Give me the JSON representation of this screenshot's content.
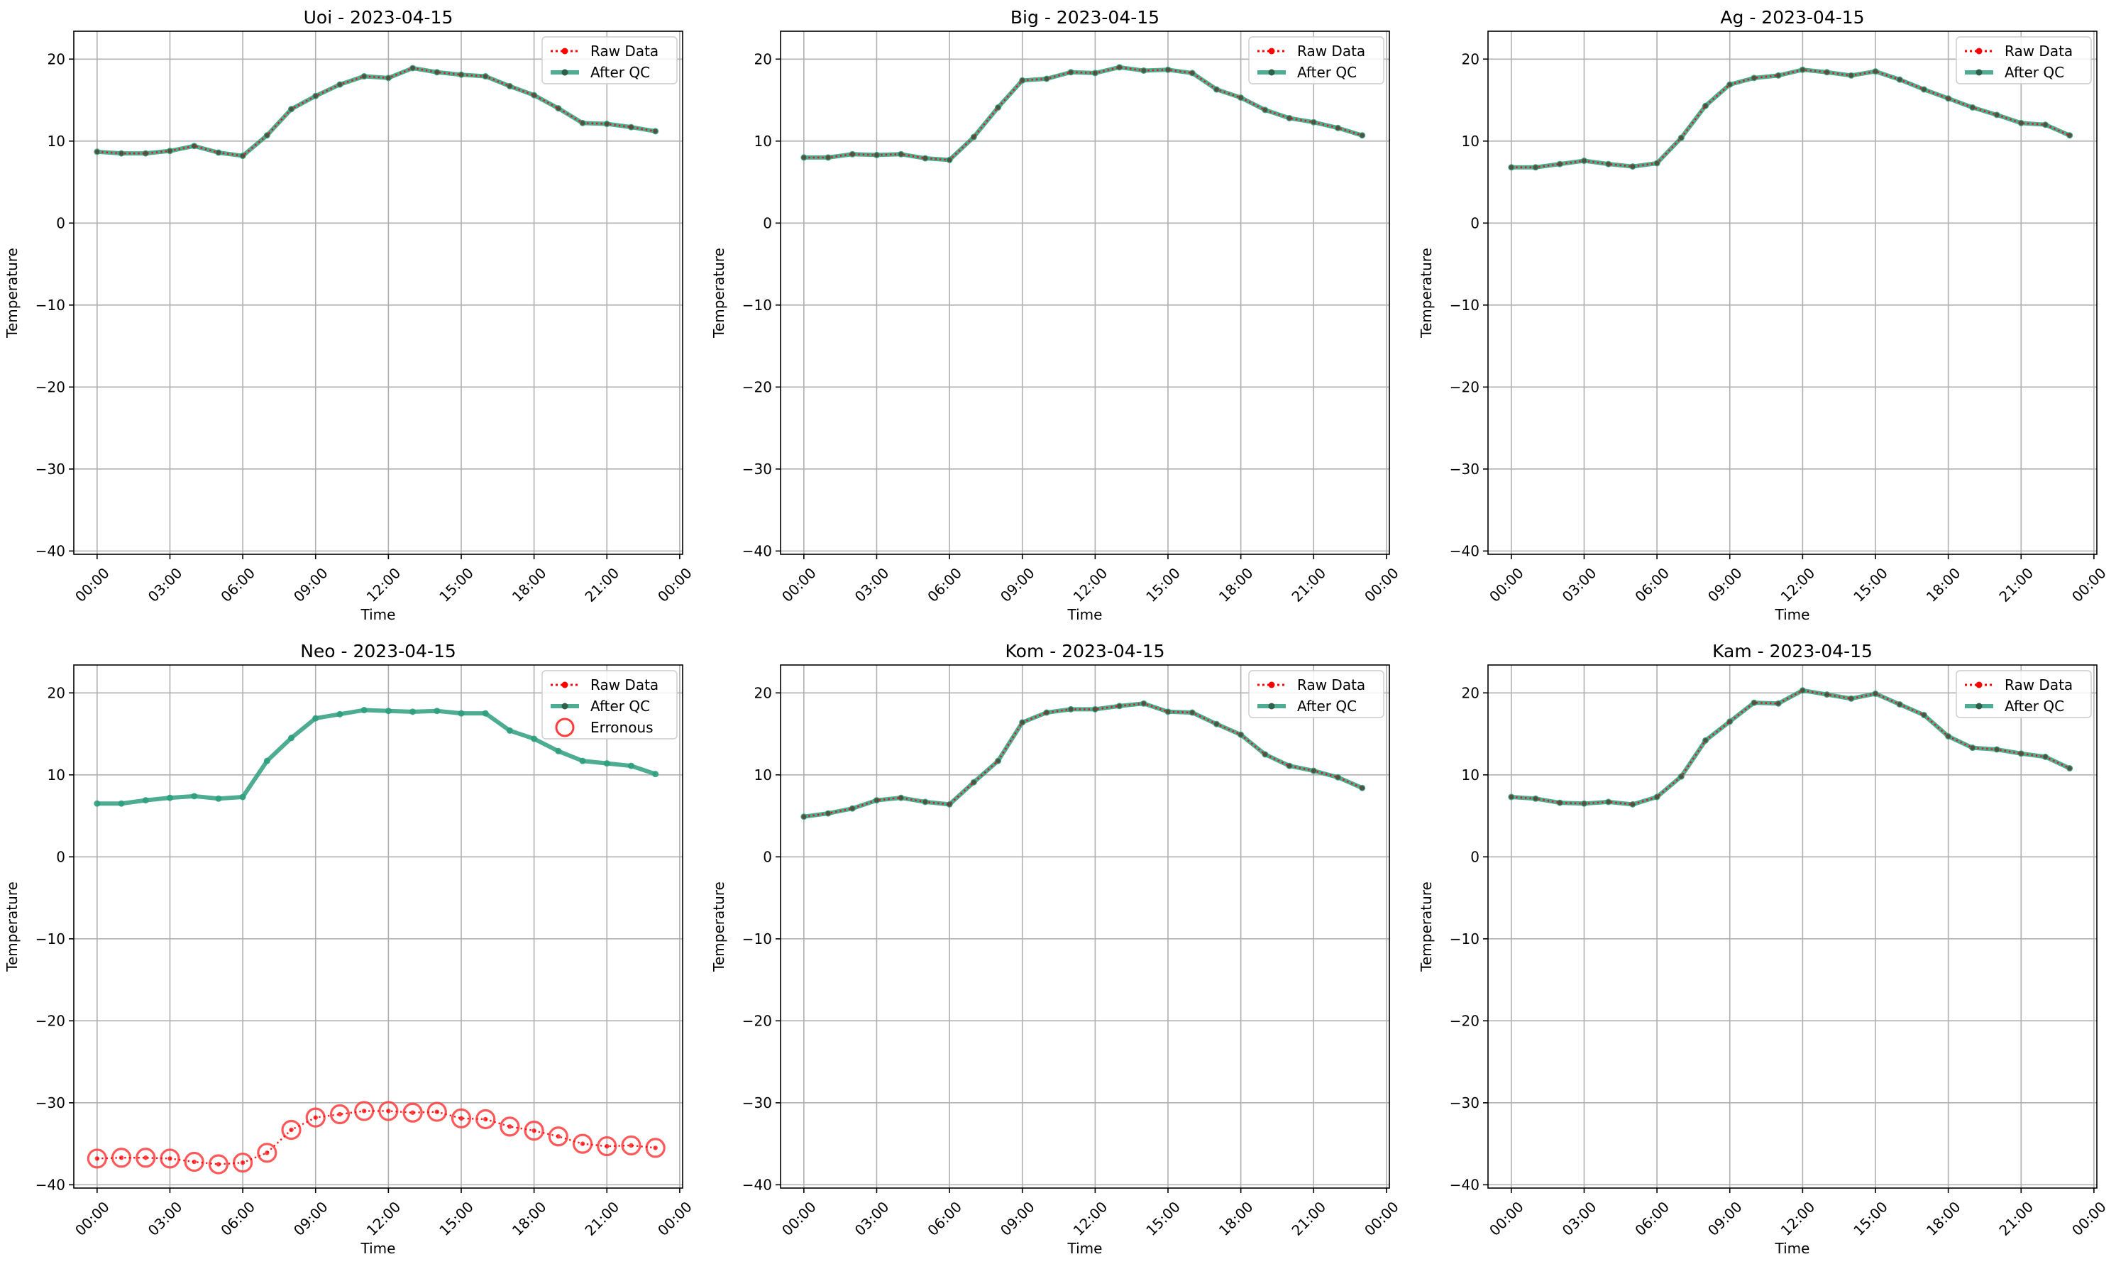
{
  "figure": {
    "date": "2023-04-15",
    "xlabel": "Time",
    "ylabel": "Temperature",
    "legend": {
      "raw": "Raw Data",
      "qc": "After QC",
      "err": "Erronous"
    },
    "x_ticks": [
      "00:00",
      "03:00",
      "06:00",
      "09:00",
      "12:00",
      "15:00",
      "18:00",
      "21:00",
      "00:00"
    ],
    "y_ticks": [
      -40,
      -30,
      -20,
      -10,
      0,
      10,
      20
    ],
    "colors": {
      "raw": "#ff0000",
      "qc": "#2e9e7e",
      "err": "#ff3b3b",
      "grid": "#b0b0b0"
    }
  },
  "chart_data": [
    {
      "type": "line",
      "station": "Uoi",
      "title": "Uoi - 2023-04-15",
      "xlabel": "Time",
      "ylabel": "Temperature",
      "xlim": [
        -0.96,
        24.12
      ],
      "ylim": [
        -40.4,
        23.4
      ],
      "x_hours": [
        0,
        1,
        2,
        3,
        4,
        5,
        6,
        7,
        8,
        9,
        10,
        11,
        12,
        13,
        14,
        15,
        16,
        17,
        18,
        19,
        20,
        21,
        22,
        23
      ],
      "series": [
        {
          "name": "Raw Data",
          "values": [
            8.7,
            8.5,
            8.5,
            8.8,
            9.4,
            8.6,
            8.2,
            10.7,
            13.9,
            15.5,
            16.9,
            17.9,
            17.7,
            18.9,
            18.4,
            18.1,
            17.9,
            16.7,
            15.6,
            14.0,
            12.2,
            12.1,
            11.7,
            11.2
          ]
        },
        {
          "name": "After QC",
          "values": [
            8.7,
            8.5,
            8.5,
            8.8,
            9.4,
            8.6,
            8.2,
            10.7,
            13.9,
            15.5,
            16.9,
            17.9,
            17.7,
            18.9,
            18.4,
            18.1,
            17.9,
            16.7,
            15.6,
            14.0,
            12.2,
            12.1,
            11.7,
            11.2
          ]
        }
      ],
      "erroneous": []
    },
    {
      "type": "line",
      "station": "Big",
      "title": "Big - 2023-04-15",
      "xlabel": "Time",
      "ylabel": "Temperature",
      "xlim": [
        -0.96,
        24.12
      ],
      "ylim": [
        -40.4,
        23.4
      ],
      "x_hours": [
        0,
        1,
        2,
        3,
        4,
        5,
        6,
        7,
        8,
        9,
        10,
        11,
        12,
        13,
        14,
        15,
        16,
        17,
        18,
        19,
        20,
        21,
        22,
        23
      ],
      "series": [
        {
          "name": "Raw Data",
          "values": [
            8.0,
            8.0,
            8.4,
            8.3,
            8.4,
            7.9,
            7.7,
            10.5,
            14.1,
            17.4,
            17.6,
            18.4,
            18.3,
            19.0,
            18.6,
            18.7,
            18.3,
            16.3,
            15.3,
            13.8,
            12.8,
            12.3,
            11.6,
            10.7
          ]
        },
        {
          "name": "After QC",
          "values": [
            8.0,
            8.0,
            8.4,
            8.3,
            8.4,
            7.9,
            7.7,
            10.5,
            14.1,
            17.4,
            17.6,
            18.4,
            18.3,
            19.0,
            18.6,
            18.7,
            18.3,
            16.3,
            15.3,
            13.8,
            12.8,
            12.3,
            11.6,
            10.7
          ]
        }
      ],
      "erroneous": []
    },
    {
      "type": "line",
      "station": "Ag",
      "title": "Ag - 2023-04-15",
      "xlabel": "Time",
      "ylabel": "Temperature",
      "xlim": [
        -0.96,
        24.12
      ],
      "ylim": [
        -40.4,
        23.4
      ],
      "x_hours": [
        0,
        1,
        2,
        3,
        4,
        5,
        6,
        7,
        8,
        9,
        10,
        11,
        12,
        13,
        14,
        15,
        16,
        17,
        18,
        19,
        20,
        21,
        22,
        23
      ],
      "series": [
        {
          "name": "Raw Data",
          "values": [
            6.8,
            6.8,
            7.2,
            7.6,
            7.2,
            6.9,
            7.3,
            10.4,
            14.3,
            16.9,
            17.7,
            18.0,
            18.7,
            18.4,
            18.0,
            18.5,
            17.5,
            16.3,
            15.2,
            14.1,
            13.2,
            12.2,
            12.0,
            10.7
          ]
        },
        {
          "name": "After QC",
          "values": [
            6.8,
            6.8,
            7.2,
            7.6,
            7.2,
            6.9,
            7.3,
            10.4,
            14.3,
            16.9,
            17.7,
            18.0,
            18.7,
            18.4,
            18.0,
            18.5,
            17.5,
            16.3,
            15.2,
            14.1,
            13.2,
            12.2,
            12.0,
            10.7
          ]
        }
      ],
      "erroneous": []
    },
    {
      "type": "line",
      "station": "Neo",
      "title": "Neo - 2023-04-15",
      "xlabel": "Time",
      "ylabel": "Temperature",
      "xlim": [
        -0.96,
        24.12
      ],
      "ylim": [
        -40.4,
        23.4
      ],
      "x_hours": [
        0,
        1,
        2,
        3,
        4,
        5,
        6,
        7,
        8,
        9,
        10,
        11,
        12,
        13,
        14,
        15,
        16,
        17,
        18,
        19,
        20,
        21,
        22,
        23
      ],
      "series": [
        {
          "name": "Raw Data",
          "values": [
            -36.8,
            -36.7,
            -36.7,
            -36.8,
            -37.2,
            -37.5,
            -37.3,
            -36.1,
            -33.3,
            -31.8,
            -31.4,
            -31.0,
            -31.0,
            -31.2,
            -31.1,
            -31.9,
            -32.0,
            -32.9,
            -33.4,
            -34.1,
            -35.0,
            -35.3,
            -35.2,
            -35.5
          ]
        },
        {
          "name": "After QC",
          "values": [
            6.5,
            6.5,
            6.9,
            7.2,
            7.4,
            7.1,
            7.3,
            11.7,
            14.5,
            16.9,
            17.4,
            17.9,
            17.8,
            17.7,
            17.8,
            17.5,
            17.5,
            15.4,
            14.4,
            12.9,
            11.7,
            11.4,
            11.1,
            10.1
          ]
        }
      ],
      "erroneous": [
        -36.8,
        -36.7,
        -36.7,
        -36.8,
        -37.2,
        -37.5,
        -37.3,
        -36.1,
        -33.3,
        -31.8,
        -31.4,
        -31.0,
        -31.0,
        -31.2,
        -31.1,
        -31.9,
        -32.0,
        -32.9,
        -33.4,
        -34.1,
        -35.0,
        -35.3,
        -35.2,
        -35.5
      ]
    },
    {
      "type": "line",
      "station": "Kom",
      "title": "Kom - 2023-04-15",
      "xlabel": "Time",
      "ylabel": "Temperature",
      "xlim": [
        -0.96,
        24.12
      ],
      "ylim": [
        -40.4,
        23.4
      ],
      "x_hours": [
        0,
        1,
        2,
        3,
        4,
        5,
        6,
        7,
        8,
        9,
        10,
        11,
        12,
        13,
        14,
        15,
        16,
        17,
        18,
        19,
        20,
        21,
        22,
        23
      ],
      "series": [
        {
          "name": "Raw Data",
          "values": [
            4.9,
            5.3,
            5.9,
            6.9,
            7.2,
            6.7,
            6.4,
            9.1,
            11.7,
            16.4,
            17.6,
            18.0,
            18.0,
            18.4,
            18.7,
            17.7,
            17.6,
            16.2,
            14.9,
            12.5,
            11.1,
            10.5,
            9.7,
            8.4
          ]
        },
        {
          "name": "After QC",
          "values": [
            4.9,
            5.3,
            5.9,
            6.9,
            7.2,
            6.7,
            6.4,
            9.1,
            11.7,
            16.4,
            17.6,
            18.0,
            18.0,
            18.4,
            18.7,
            17.7,
            17.6,
            16.2,
            14.9,
            12.5,
            11.1,
            10.5,
            9.7,
            8.4
          ]
        }
      ],
      "erroneous": []
    },
    {
      "type": "line",
      "station": "Kam",
      "title": "Kam - 2023-04-15",
      "xlabel": "Time",
      "ylabel": "Temperature",
      "xlim": [
        -0.96,
        24.12
      ],
      "ylim": [
        -40.4,
        23.4
      ],
      "x_hours": [
        0,
        1,
        2,
        3,
        4,
        5,
        6,
        7,
        8,
        9,
        10,
        11,
        12,
        13,
        14,
        15,
        16,
        17,
        18,
        19,
        20,
        21,
        22,
        23
      ],
      "series": [
        {
          "name": "Raw Data",
          "values": [
            7.3,
            7.1,
            6.6,
            6.5,
            6.7,
            6.4,
            7.3,
            9.8,
            14.2,
            16.5,
            18.8,
            18.7,
            20.3,
            19.8,
            19.3,
            19.9,
            18.6,
            17.3,
            14.7,
            13.3,
            13.1,
            12.6,
            12.2,
            10.8
          ]
        },
        {
          "name": "After QC",
          "values": [
            7.3,
            7.1,
            6.6,
            6.5,
            6.7,
            6.4,
            7.3,
            9.8,
            14.2,
            16.5,
            18.8,
            18.7,
            20.3,
            19.8,
            19.3,
            19.9,
            18.6,
            17.3,
            14.7,
            13.3,
            13.1,
            12.6,
            12.2,
            10.8
          ]
        }
      ],
      "erroneous": []
    }
  ]
}
